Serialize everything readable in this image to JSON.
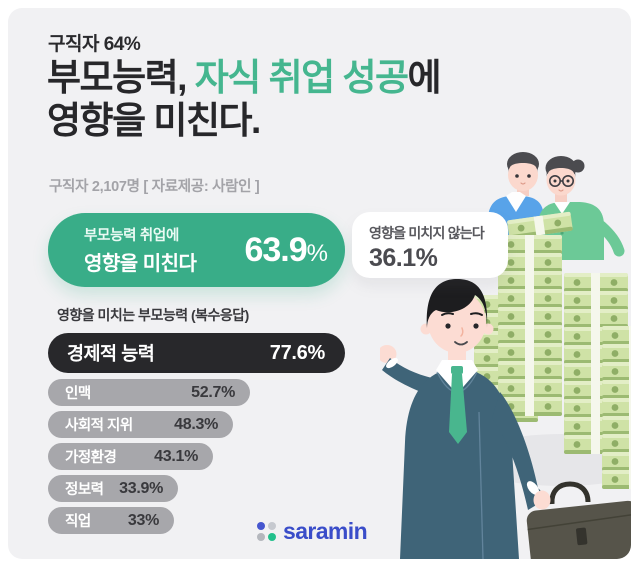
{
  "header": {
    "kicker": "구직자 64%",
    "title": {
      "prefix": "부모능력, ",
      "highlight": "자식 취업 성공",
      "suffix": "에",
      "line2": "영향을 미친다."
    },
    "source": "구직자 2,107명 [ 자료제공: 사람인 ]"
  },
  "cards": {
    "agree": {
      "line1": "부모능력 취업에",
      "line2": "영향을 미친다",
      "value": "63.9",
      "unit": "%"
    },
    "disagree": {
      "label": "영향을 미치지 않는다",
      "value": "36.1%"
    }
  },
  "section": {
    "heading": "영향을 미치는 부모능력 (복수응답)"
  },
  "chart_data": [
    {
      "id": "influence_split",
      "type": "bar",
      "title": "부모능력 취업 영향 여부",
      "categories": [
        "부모능력 취업에 영향을 미친다",
        "영향을 미치지 않는다"
      ],
      "values": [
        63.9,
        36.1
      ],
      "value_labels": [
        "63.9%",
        "36.1%"
      ],
      "unit": "%"
    },
    {
      "id": "parent_abilities",
      "type": "bar",
      "orientation": "horizontal",
      "title": "영향을 미치는 부모능력 (복수응답)",
      "categories": [
        "경제적 능력",
        "인맥",
        "사회적 지위",
        "가정환경",
        "정보력",
        "직업"
      ],
      "values": [
        77.6,
        52.7,
        48.3,
        43.1,
        33.9,
        33
      ],
      "value_labels": [
        "77.6%",
        "52.7%",
        "48.3%",
        "43.1%",
        "33.9%",
        "33%"
      ],
      "xlim": [
        0,
        100
      ],
      "unit": "%"
    }
  ],
  "footer": {
    "brand": "saramin"
  },
  "colors": {
    "background": "#f1f1f3",
    "accent_green": "#45b68f",
    "agree_card_green": "#39ad88",
    "top_bar_black": "#28282b",
    "bar_gray": "#a7a7ab",
    "brand_blue": "#3a4dc9",
    "brand_dots": [
      "#4656cf",
      "#c6c9cf",
      "#b4b7bd",
      "#22c08c"
    ]
  },
  "illustration": {
    "alt": "부모(아버지·어머니)와 돈다발 더미, 서류가방을 든 구직자 청년 일러스트"
  }
}
